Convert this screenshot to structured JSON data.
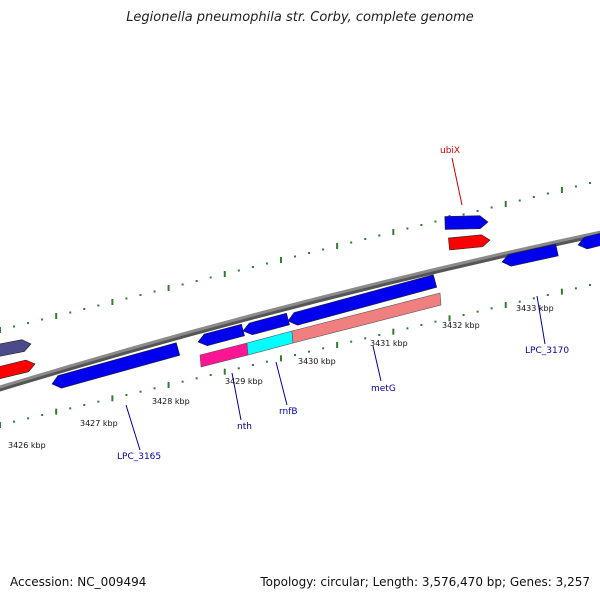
{
  "title": "Legionella pneumophila str. Corby, complete genome",
  "footer": {
    "accession": "Accession: NC_009494",
    "summary": "Topology: circular; Length: 3,576,470 bp; Genes: 3,257"
  },
  "colors": {
    "backbone": "#8a8a8a",
    "tick": "#2e7d32",
    "gene_forward": "#0000ee",
    "gene_reverse": "#ff0000",
    "gene_dark": "#4b4b8c",
    "highlight_pink": "#ff1493",
    "highlight_cyan": "#00ffff",
    "highlight_salmon": "#f08080",
    "label_blue": "#0000aa",
    "label_red": "#cc0000"
  },
  "position_ticks": [
    {
      "label": "3426 kbp"
    },
    {
      "label": "3427 kbp"
    },
    {
      "label": "3428 kbp"
    },
    {
      "label": "3429 kbp"
    },
    {
      "label": "3430 kbp"
    },
    {
      "label": "3431 kbp"
    },
    {
      "label": "3432 kbp"
    },
    {
      "label": "3433 kbp"
    }
  ],
  "gene_labels": [
    {
      "name": "LPC_3165",
      "strand": "reverse"
    },
    {
      "name": "nth",
      "strand": "reverse"
    },
    {
      "name": "rnfB",
      "strand": "reverse"
    },
    {
      "name": "metG",
      "strand": "reverse"
    },
    {
      "name": "LPC_3170",
      "strand": "reverse"
    },
    {
      "name": "ubiX",
      "strand": "forward"
    }
  ]
}
